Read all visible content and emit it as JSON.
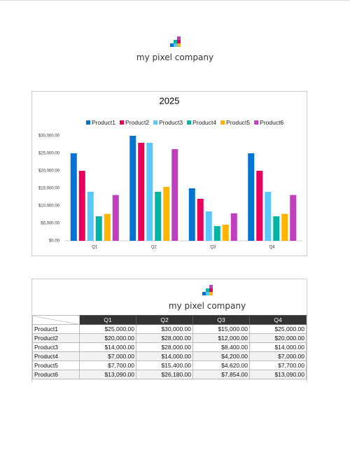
{
  "header": {
    "company": "my pixel company"
  },
  "chart_data": {
    "type": "bar",
    "title": "2025",
    "categories": [
      "Q1",
      "Q2",
      "Q3",
      "Q4"
    ],
    "series": [
      {
        "name": "Product1",
        "color": "#0074d0",
        "values": [
          25000,
          30000,
          15000,
          25000
        ]
      },
      {
        "name": "Product2",
        "color": "#e8005a",
        "values": [
          20000,
          28000,
          12000,
          20000
        ]
      },
      {
        "name": "Product3",
        "color": "#5ac8fa",
        "values": [
          14000,
          28000,
          8400,
          14000
        ]
      },
      {
        "name": "Product4",
        "color": "#00b3a4",
        "values": [
          7000,
          14000,
          4200,
          7000
        ]
      },
      {
        "name": "Product5",
        "color": "#ffb400",
        "values": [
          7700,
          15400,
          4620,
          7700
        ]
      },
      {
        "name": "Product6",
        "color": "#c03fbe",
        "values": [
          13090,
          26180,
          7854,
          13090
        ]
      }
    ],
    "ylim": [
      0,
      30000
    ],
    "yticks": [
      {
        "value": 0,
        "label": "$0.00"
      },
      {
        "value": 5000,
        "label": "$5,000.00"
      },
      {
        "value": 10000,
        "label": "$10,000.00"
      },
      {
        "value": 15000,
        "label": "$15,000.00"
      },
      {
        "value": 20000,
        "label": "$20,000.00"
      },
      {
        "value": 25000,
        "label": "$25,000.00"
      },
      {
        "value": 30000,
        "label": "$30,000.00"
      }
    ],
    "legend": "top",
    "grid": false
  },
  "table_header": {
    "company": "my pixel company"
  },
  "table": {
    "columns": [
      "Q1",
      "Q2",
      "Q3",
      "Q4"
    ],
    "rows": [
      [
        "Product1",
        "$25,000.00",
        "$30,000.00",
        "$15,000.00",
        "$25,000.00"
      ],
      [
        "Product2",
        "$20,000.00",
        "$28,000.00",
        "$12,000.00",
        "$20,000.00"
      ],
      [
        "Product3",
        "$14,000.00",
        "$28,000.00",
        "$8,400.00",
        "$14,000.00"
      ],
      [
        "Product4",
        "$7,000.00",
        "$14,000.00",
        "$4,200.00",
        "$7,000.00"
      ],
      [
        "Product5",
        "$7,700.00",
        "$15,400.00",
        "$4,620.00",
        "$7,700.00"
      ],
      [
        "Product6",
        "$13,090.00",
        "$26,180.00",
        "$7,854.00",
        "$13,090.00"
      ]
    ]
  }
}
